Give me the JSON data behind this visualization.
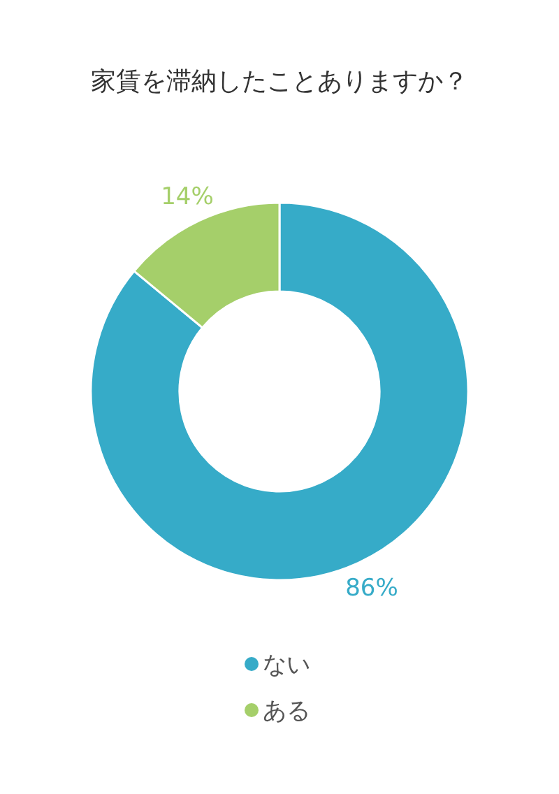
{
  "chart_data": {
    "type": "donut",
    "title": "家賃を滞納したことありますか？",
    "categories": [
      "ない",
      "ある"
    ],
    "values": [
      86,
      14
    ],
    "colors": [
      "#36abc8",
      "#a5cf6a"
    ],
    "value_labels": [
      "86%",
      "14%"
    ],
    "legend": "bottom"
  }
}
